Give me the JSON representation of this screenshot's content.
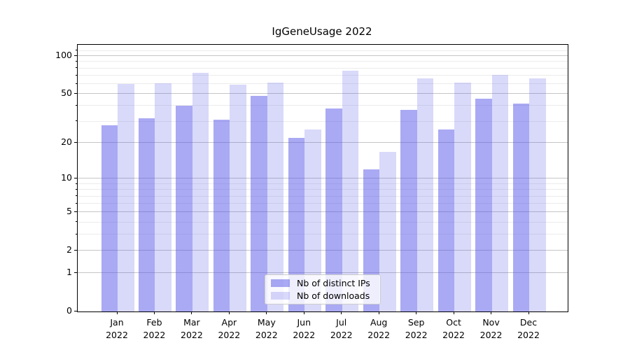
{
  "chart_data": {
    "type": "bar",
    "title": "IgGeneUsage 2022",
    "x": [
      "Jan",
      "Feb",
      "Mar",
      "Apr",
      "May",
      "Jun",
      "Jul",
      "Aug",
      "Sep",
      "Oct",
      "Nov",
      "Dec"
    ],
    "x_year": "2022",
    "series": [
      {
        "name": "Nb of distinct IPs",
        "color": "#5050e8",
        "alpha": 0.49,
        "values": [
          28,
          32,
          40,
          31,
          48,
          22,
          38,
          12,
          37,
          26,
          46,
          42
        ]
      },
      {
        "name": "Nb of downloads",
        "color": "#5050e8",
        "alpha": 0.22,
        "values": [
          60,
          61,
          74,
          59,
          62,
          26,
          77,
          17,
          67,
          62,
          71,
          67
        ]
      }
    ],
    "yscale": "log1p",
    "ylim": [
      0,
      123
    ],
    "yticks": [
      0,
      1,
      2,
      5,
      10,
      20,
      50,
      100
    ],
    "yticks_minor": [
      3,
      4,
      6,
      7,
      8,
      9,
      30,
      40,
      60,
      70,
      80,
      90,
      110
    ],
    "xlabel": "",
    "ylabel": "",
    "grid": true,
    "legend_position": "lower center"
  },
  "colors": {
    "background": "#ffffff",
    "axis": "#000000",
    "grid_major": "#c6c6c6",
    "grid_minor": "#ececec",
    "bar_ips_rendered": "#a9a9f6",
    "bar_downloads_rendered": "#d9d9f9",
    "legend_border": "#cccccc"
  }
}
